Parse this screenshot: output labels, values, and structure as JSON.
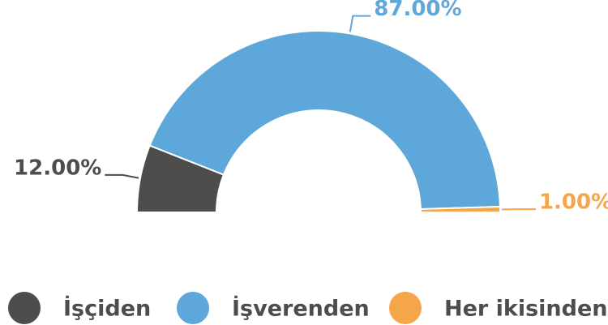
{
  "chart_data": {
    "type": "half-donut",
    "categories": [
      "İşçiden",
      "İşverenden",
      "Her ikisinden"
    ],
    "values": [
      12,
      87,
      1
    ],
    "value_labels": [
      "12.00%",
      "87.00%",
      "1.00%"
    ],
    "colors": [
      "#4d4d4d",
      "#5ea7db",
      "#f5a54a"
    ],
    "legend": "bottom"
  }
}
